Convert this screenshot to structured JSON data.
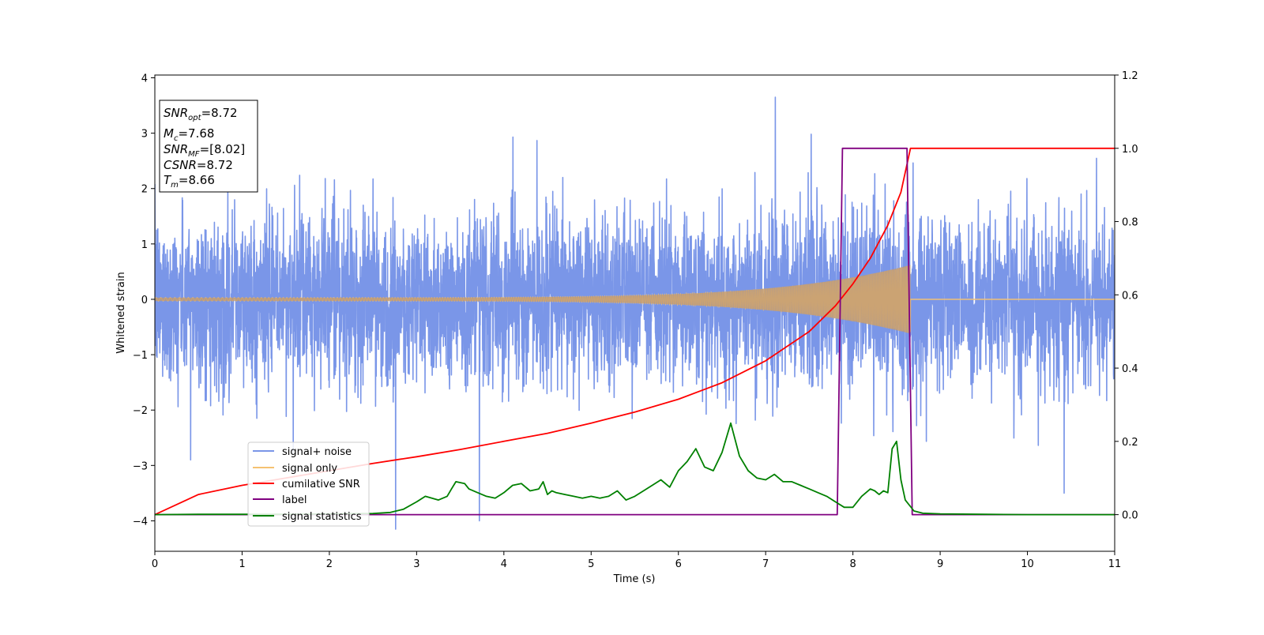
{
  "chart_data": {
    "type": "line",
    "title": "",
    "xlabel": "Time (s)",
    "ylabel": "Whitened strain",
    "y2label": "",
    "xlim": [
      0,
      11
    ],
    "ylim": [
      -4.55,
      4.05
    ],
    "y2lim": [
      -0.1,
      1.2
    ],
    "x_ticks": [
      0,
      1,
      2,
      3,
      4,
      5,
      6,
      7,
      8,
      9,
      10,
      11
    ],
    "y_ticks": [
      -4,
      -3,
      -2,
      -1,
      0,
      1,
      2,
      3,
      4
    ],
    "y2_ticks": [
      0.0,
      0.2,
      0.4,
      0.6,
      0.8,
      1.0,
      1.2
    ],
    "grid": false,
    "legend_position": "lower-left",
    "annotation": {
      "snr_opt": "=8.72",
      "mc": "=7.68",
      "snr_mf": "=[8.02]",
      "csnr": "=8.72",
      "tm": "=8.66"
    },
    "series": [
      {
        "name": "signal+ noise",
        "axis": "left",
        "color": "#7a96e8",
        "note_noise_std": 0.75,
        "peaks": [
          {
            "x": 7.11,
            "y": 3.65
          },
          {
            "x": 2.76,
            "y": -4.15
          },
          {
            "x": 3.72,
            "y": -4.0
          },
          {
            "x": 10.42,
            "y": -3.5
          },
          {
            "x": 0.41,
            "y": -2.9
          }
        ]
      },
      {
        "name": "signal only",
        "axis": "left",
        "color": "#f5c271",
        "amp_start": 0.03,
        "amp_end": 0.62,
        "t_merge": 8.66
      },
      {
        "name": "cumilative SNR",
        "axis": "right",
        "color": "#ff0000",
        "x": [
          0,
          0.5,
          1,
          1.5,
          2,
          2.5,
          3,
          3.5,
          4,
          4.5,
          5,
          5.5,
          6,
          6.5,
          7,
          7.5,
          7.8,
          8.0,
          8.2,
          8.4,
          8.55,
          8.66,
          11
        ],
        "values": [
          0.0,
          0.055,
          0.08,
          0.1,
          0.12,
          0.14,
          0.158,
          0.178,
          0.2,
          0.222,
          0.25,
          0.28,
          0.315,
          0.36,
          0.42,
          0.5,
          0.57,
          0.63,
          0.7,
          0.79,
          0.88,
          1.0,
          1.0
        ]
      },
      {
        "name": "label",
        "axis": "right",
        "color": "#800080",
        "x": [
          0,
          7.82,
          7.88,
          8.62,
          8.68,
          11
        ],
        "values": [
          0,
          0,
          1,
          1,
          0,
          0
        ]
      },
      {
        "name": "signal statistics",
        "axis": "right",
        "color": "#008000",
        "x": [
          0,
          0.5,
          1,
          1.5,
          2,
          2.5,
          2.7,
          2.85,
          3.0,
          3.1,
          3.25,
          3.35,
          3.4,
          3.45,
          3.55,
          3.6,
          3.7,
          3.8,
          3.9,
          4.0,
          4.1,
          4.2,
          4.3,
          4.4,
          4.45,
          4.5,
          4.55,
          4.6,
          4.7,
          4.8,
          4.9,
          5.0,
          5.1,
          5.2,
          5.3,
          5.4,
          5.5,
          5.6,
          5.7,
          5.8,
          5.9,
          6.0,
          6.1,
          6.2,
          6.3,
          6.4,
          6.5,
          6.55,
          6.6,
          6.7,
          6.8,
          6.9,
          7.0,
          7.1,
          7.2,
          7.3,
          7.4,
          7.5,
          7.6,
          7.7,
          7.8,
          7.9,
          8.0,
          8.1,
          8.2,
          8.25,
          8.3,
          8.35,
          8.4,
          8.45,
          8.5,
          8.55,
          8.6,
          8.7,
          8.8,
          9.0,
          9.5,
          10.0,
          11.0
        ],
        "values": [
          0.0,
          0.001,
          0.001,
          0.001,
          0.002,
          0.003,
          0.006,
          0.015,
          0.035,
          0.05,
          0.04,
          0.05,
          0.07,
          0.09,
          0.085,
          0.07,
          0.06,
          0.05,
          0.045,
          0.06,
          0.08,
          0.085,
          0.065,
          0.07,
          0.09,
          0.055,
          0.065,
          0.06,
          0.055,
          0.05,
          0.045,
          0.05,
          0.045,
          0.05,
          0.065,
          0.04,
          0.05,
          0.065,
          0.08,
          0.095,
          0.075,
          0.12,
          0.145,
          0.18,
          0.13,
          0.12,
          0.17,
          0.21,
          0.25,
          0.16,
          0.12,
          0.1,
          0.095,
          0.11,
          0.09,
          0.09,
          0.08,
          0.07,
          0.06,
          0.05,
          0.035,
          0.02,
          0.02,
          0.05,
          0.07,
          0.065,
          0.055,
          0.065,
          0.06,
          0.18,
          0.2,
          0.095,
          0.04,
          0.01,
          0.004,
          0.002,
          0.001,
          0.0,
          0.0
        ]
      }
    ]
  }
}
